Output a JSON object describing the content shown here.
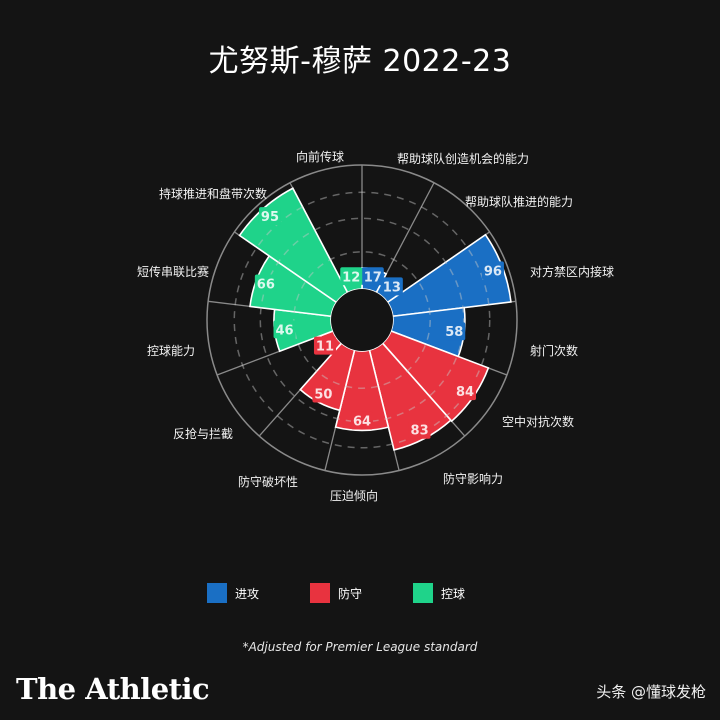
{
  "title": "尤努斯-穆萨 2022-23",
  "colors": {
    "background": "#141414",
    "attack": "#1a6fc4",
    "defense": "#e8333f",
    "possession": "#1fd38a",
    "grid": "#8a8a8a"
  },
  "legend": [
    {
      "label": "进攻",
      "color": "#1a6fc4"
    },
    {
      "label": "防守",
      "color": "#e8333f"
    },
    {
      "label": "控球",
      "color": "#1fd38a"
    }
  ],
  "footnote": "*Adjusted for Premier League standard",
  "brand": "The Athletic",
  "watermark": "头条 @懂球发枪",
  "chart_data": {
    "type": "polar-bar",
    "title": "尤努斯-穆萨 2022-23",
    "scale": [
      0,
      100
    ],
    "grid": "dashed rings at 25/50/75, solid outer ring at 100",
    "start_angle_deg": 0,
    "direction": "clockwise",
    "categories": [
      "帮助球队创造机会的能力",
      "帮助球队推进的能力",
      "对方禁区内接球",
      "射门次数",
      "空中对抗次数",
      "防守影响力",
      "压迫倾向",
      "防守破坏性",
      "反抢与拦截",
      "控球能力",
      "短传串联比赛",
      "持球推进和盘带次数",
      "向前传球"
    ],
    "values": [
      17,
      13,
      96,
      58,
      84,
      83,
      64,
      50,
      11,
      46,
      66,
      95,
      12
    ],
    "groups": [
      "进攻",
      "进攻",
      "进攻",
      "进攻",
      "防守",
      "防守",
      "防守",
      "防守",
      "防守",
      "控球",
      "控球",
      "控球",
      "控球"
    ],
    "legend": [
      "进攻",
      "防守",
      "控球"
    ],
    "legend_position": "bottom"
  }
}
